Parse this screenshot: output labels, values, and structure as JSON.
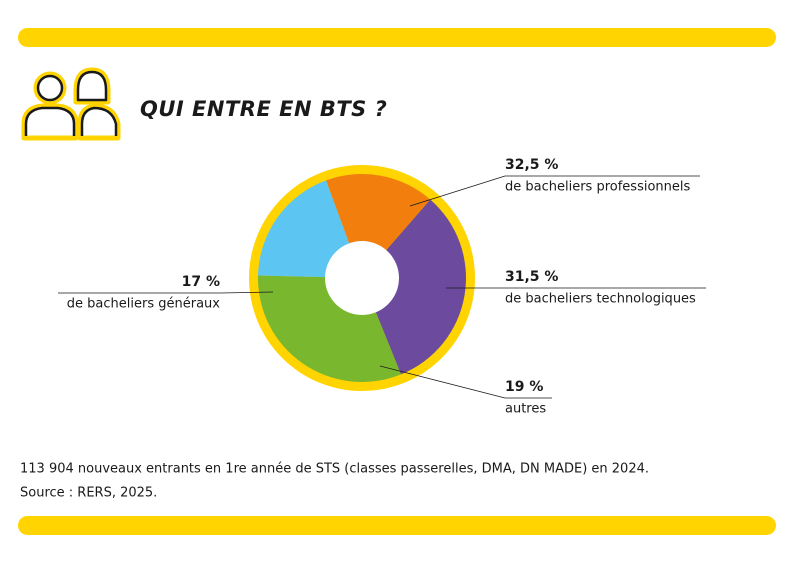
{
  "chart_data": {
    "type": "pie",
    "title": "QUI ENTRE EN BTS ?",
    "categories": [
      "de bacheliers professionnels",
      "de bacheliers technologiques",
      "autres",
      "de bacheliers généraux"
    ],
    "values": [
      32.5,
      31.5,
      19,
      17
    ],
    "value_labels": [
      "32,5 %",
      "31,5 %",
      "19 %",
      "17 %"
    ],
    "colors": [
      "#6c4a9e",
      "#79b72f",
      "#5cc5f2",
      "#f17e0d"
    ],
    "notes": [
      "113 904 nouveaux entrants en 1re année de STS (classes passerelles, DMA, DN MADE) en 2024.",
      "Source : RERS, 2025."
    ]
  }
}
